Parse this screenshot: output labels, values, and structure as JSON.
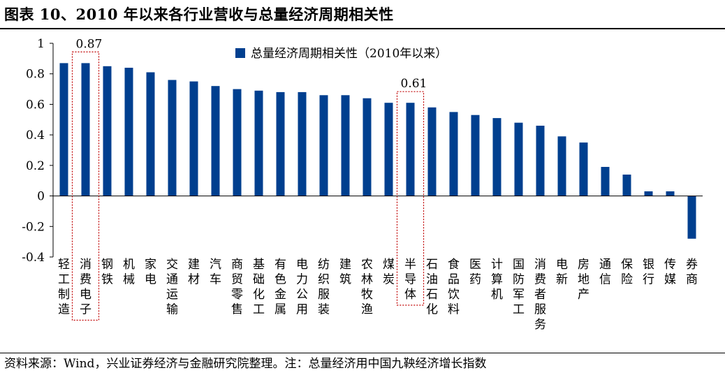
{
  "page": {
    "title": "图表 10、2010 年以来各行业营收与总量经济周期相关性",
    "source_note": "资料来源：Wind，兴业证券经济与金融研究院整理。注：总量经济用中国九鞅经济增长指数"
  },
  "colors": {
    "bar": "#003F8F",
    "axis": "#000000",
    "highlight_box": "#C00000"
  },
  "chart_data": {
    "type": "bar",
    "title": "",
    "xlabel": "",
    "ylabel": "",
    "legend": {
      "position": "top",
      "entries": [
        "总量经济周期相关性（2010年以来）"
      ]
    },
    "grid": false,
    "ylim": [
      -0.4,
      1.0
    ],
    "yticks": [
      "1",
      "0.8",
      "0.6",
      "0.4",
      "0.2",
      "0",
      "-0.2",
      "-0.4"
    ],
    "ytick_values": [
      1.0,
      0.8,
      0.6,
      0.4,
      0.2,
      0.0,
      -0.2,
      -0.4
    ],
    "categories": [
      "轻工制造",
      "消费电子",
      "钢铁",
      "机械",
      "家电",
      "交通运输",
      "建材",
      "汽车",
      "商贸零售",
      "基础化工",
      "有色金属",
      "电力公用",
      "纺织服装",
      "建筑",
      "农林牧渔",
      "煤炭",
      "半导体",
      "石油石化",
      "食品饮料",
      "医药",
      "计算机",
      "国防军工",
      "消费者服务",
      "电新",
      "房地产",
      "通信",
      "保险",
      "银行",
      "传媒",
      "券商"
    ],
    "series": [
      {
        "name": "总量经济周期相关性（2010年以来）",
        "values": [
          0.87,
          0.87,
          0.85,
          0.84,
          0.81,
          0.76,
          0.75,
          0.72,
          0.7,
          0.69,
          0.68,
          0.68,
          0.66,
          0.66,
          0.64,
          0.61,
          0.61,
          0.58,
          0.55,
          0.53,
          0.51,
          0.48,
          0.46,
          0.39,
          0.35,
          0.19,
          0.14,
          0.03,
          0.03,
          -0.28
        ]
      }
    ],
    "annotations": [
      {
        "category": "消费电子",
        "label": "0.87"
      },
      {
        "category": "半导体",
        "label": "0.61"
      }
    ]
  }
}
